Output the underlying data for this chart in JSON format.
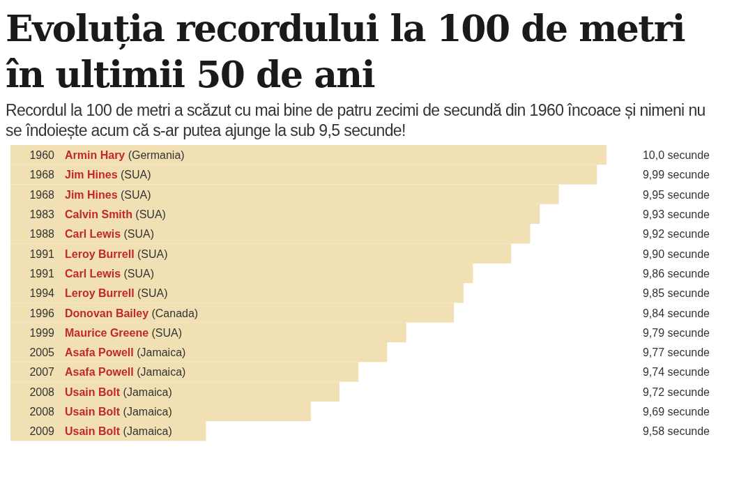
{
  "chart_data": {
    "type": "bar",
    "orientation": "horizontal",
    "title": "Evoluția recordului la 100 de metri în ultimii 50 de ani",
    "subtitle": "Recordul la 100 de metri a scăzut cu mai bine de patru zecimi de secundă din 1960 încoace și nimeni nu se îndoiește acum că s-ar putea ajunge la sub 9,5 secunde!",
    "categories": [
      "1960 Armin Hary (Germania)",
      "1968 Jim Hines (SUA)",
      "1968 Jim Hines (SUA)",
      "1983 Calvin Smith (SUA)",
      "1988 Carl Lewis (SUA)",
      "1991 Leroy Burrell (SUA)",
      "1991 Carl Lewis (SUA)",
      "1994 Leroy Burrell (SUA)",
      "1996 Donovan Bailey (Canada)",
      "1999 Maurice Greene (SUA)",
      "2005 Asafa Powell (Jamaica)",
      "2007 Asafa Powell (Jamaica)",
      "2008 Usain Bolt (Jamaica)",
      "2008 Usain Bolt (Jamaica)",
      "2009 Usain Bolt (Jamaica)"
    ],
    "values": [
      10.0,
      9.99,
      9.95,
      9.93,
      9.92,
      9.9,
      9.86,
      9.85,
      9.84,
      9.79,
      9.77,
      9.74,
      9.72,
      9.69,
      9.58
    ],
    "value_labels": [
      "10,0 secunde",
      "9,99 secunde",
      "9,95 secunde",
      "9,93 secunde",
      "9,92 secunde",
      "9,90 secunde",
      "9,86 secunde",
      "9,85 secunde",
      "9,84 secunde",
      "9,79 secunde",
      "9,77 secunde",
      "9,74 secunde",
      "9,72 secunde",
      "9,69 secunde",
      "9,58 secunde"
    ],
    "color": "#f1e0b3",
    "xlim": [
      9.375,
      10.0
    ]
  }
}
